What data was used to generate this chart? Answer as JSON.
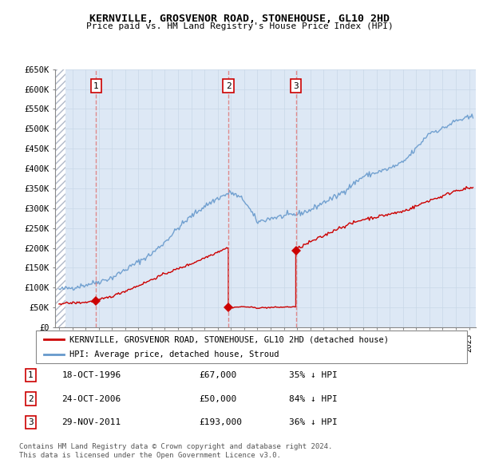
{
  "title": "KERNVILLE, GROSVENOR ROAD, STONEHOUSE, GL10 2HD",
  "subtitle": "Price paid vs. HM Land Registry's House Price Index (HPI)",
  "ylim": [
    0,
    650000
  ],
  "xlim_start": 1993.7,
  "xlim_end": 2025.5,
  "yticks": [
    0,
    50000,
    100000,
    150000,
    200000,
    250000,
    300000,
    350000,
    400000,
    450000,
    500000,
    550000,
    600000,
    650000
  ],
  "ytick_labels": [
    "£0",
    "£50K",
    "£100K",
    "£150K",
    "£200K",
    "£250K",
    "£300K",
    "£350K",
    "£400K",
    "£450K",
    "£500K",
    "£550K",
    "£600K",
    "£650K"
  ],
  "sale_events": [
    {
      "num": 1,
      "year": 1996.8,
      "price": 67000
    },
    {
      "num": 2,
      "year": 2006.8,
      "price": 50000
    },
    {
      "num": 3,
      "year": 2011.9,
      "price": 193000
    }
  ],
  "red_line_color": "#cc0000",
  "blue_line_color": "#6699cc",
  "grid_color": "#c8d8e8",
  "bg_plot": "#dde8f5",
  "hatch_end": 1994.5,
  "legend_label_red": "KERNVILLE, GROSVENOR ROAD, STONEHOUSE, GL10 2HD (detached house)",
  "legend_label_blue": "HPI: Average price, detached house, Stroud",
  "footer1": "Contains HM Land Registry data © Crown copyright and database right 2024.",
  "footer2": "This data is licensed under the Open Government Licence v3.0.",
  "table_rows": [
    [
      "1",
      "18-OCT-1996",
      "£67,000",
      "35% ↓ HPI"
    ],
    [
      "2",
      "24-OCT-2006",
      "£50,000",
      "84% ↓ HPI"
    ],
    [
      "3",
      "29-NOV-2011",
      "£193,000",
      "36% ↓ HPI"
    ]
  ]
}
